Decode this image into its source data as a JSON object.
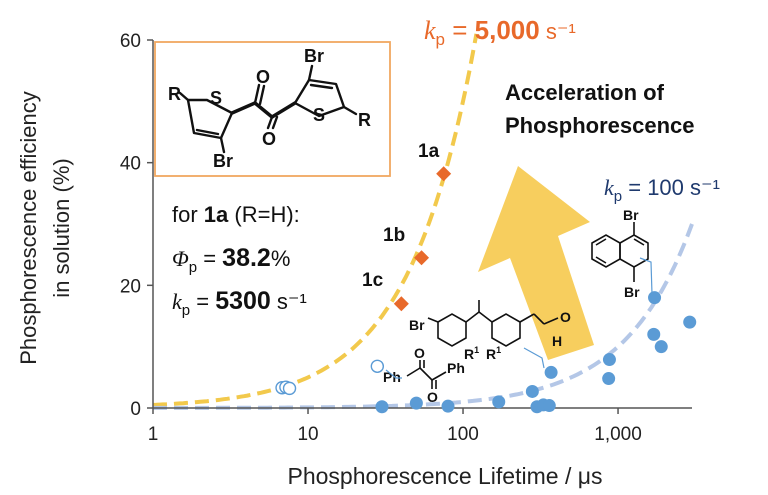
{
  "chart_data": {
    "type": "scatter",
    "title": "",
    "xlabel": "Phosphorescence Lifetime / μs",
    "ylabel_line1": "Phosphorescence efficiency",
    "ylabel_line2": "in solution (%)",
    "xscale": "log",
    "xlim": [
      1,
      3000
    ],
    "ylim": [
      0,
      60
    ],
    "x_ticks": [
      {
        "value": 1,
        "label": "1"
      },
      {
        "value": 10,
        "label": "10"
      },
      {
        "value": 100,
        "label": "100"
      },
      {
        "value": 1000,
        "label": "1,000"
      }
    ],
    "y_ticks": [
      {
        "value": 0,
        "label": "0"
      },
      {
        "value": 20,
        "label": "20"
      },
      {
        "value": 40,
        "label": "40"
      },
      {
        "value": 60,
        "label": "60"
      }
    ],
    "grid": false,
    "colors": {
      "orange": "#e8692a",
      "blue": "#5b9bd5",
      "navy": "#1f3a6e",
      "yellow": "#f2c94c",
      "light_blue": "#b4c7e7"
    },
    "series": [
      {
        "marker": "diamond",
        "color": "#e8692a",
        "points": [
          {
            "x": 40,
            "y": 17.0,
            "label": "1c"
          },
          {
            "x": 54,
            "y": 24.5,
            "label": "1b"
          },
          {
            "x": 75,
            "y": 38.2,
            "label": "1a"
          }
        ]
      },
      {
        "marker": "circle",
        "color": "#5b9bd5",
        "points": [
          {
            "x": 30,
            "y": 0.2
          },
          {
            "x": 50,
            "y": 0.8
          },
          {
            "x": 80,
            "y": 0.3
          },
          {
            "x": 170,
            "y": 1.0
          },
          {
            "x": 280,
            "y": 2.7
          },
          {
            "x": 300,
            "y": 0.2
          },
          {
            "x": 330,
            "y": 0.5
          },
          {
            "x": 360,
            "y": 0.4
          },
          {
            "x": 370,
            "y": 5.8
          },
          {
            "x": 870,
            "y": 4.8
          },
          {
            "x": 880,
            "y": 7.9
          },
          {
            "x": 1700,
            "y": 12.0
          },
          {
            "x": 1720,
            "y": 18.0
          },
          {
            "x": 1900,
            "y": 10.0
          },
          {
            "x": 2900,
            "y": 14.0
          }
        ]
      },
      {
        "marker": "open-circle",
        "color": "#5b9bd5",
        "points": [
          {
            "x": 6.8,
            "y": 3.3
          },
          {
            "x": 7.2,
            "y": 3.4
          },
          {
            "x": 7.6,
            "y": 3.2
          },
          {
            "x": 28,
            "y": 6.8
          }
        ]
      }
    ],
    "curves": [
      {
        "kp": 5000,
        "color": "#f2c94c",
        "style": "dashed",
        "label_prefix": "k",
        "label_sub": "p",
        "label_eq": " = ",
        "label_value": "5,000",
        "label_unit": " s⁻¹"
      },
      {
        "kp": 100,
        "color": "#b4c7e7",
        "style": "dashed",
        "label_prefix": "k",
        "label_sub": "p",
        "label_eq": " = ",
        "label_value": "100",
        "label_unit": " s⁻¹"
      }
    ],
    "annotations": {
      "arrow_text_line1": "Acceleration of",
      "arrow_text_line2": "Phosphorescence",
      "info_for": "for ",
      "info_compound": "1a",
      "info_rest": " (R=H):",
      "phi_symbol": "Φ",
      "phi_sub": "p",
      "phi_eq": " = ",
      "phi_value": "38.2",
      "phi_unit": "%",
      "kp_symbol": "k",
      "kp_sub": "p",
      "kp_eq": " = ",
      "kp_value": "5300",
      "kp_unit": " s⁻¹"
    },
    "structure_labels": {
      "r_left": "R",
      "s_left": "S",
      "br_bottom": "Br",
      "o_top": "O",
      "o_bottom": "O",
      "br_top": "Br",
      "s_right": "S",
      "r_right": "R",
      "naph_br_top": "Br",
      "naph_br_bottom": "Br",
      "fl_br": "Br",
      "fl_r1_a": "R",
      "fl_r1_sup_a": "1",
      "fl_r1_b": "R",
      "fl_r1_sup_b": "1",
      "fl_o": "O",
      "fl_h": "H",
      "bz_ph_left": "Ph",
      "bz_ph_right": "Ph",
      "bz_o_top": "O",
      "bz_o_bottom": "O"
    }
  }
}
